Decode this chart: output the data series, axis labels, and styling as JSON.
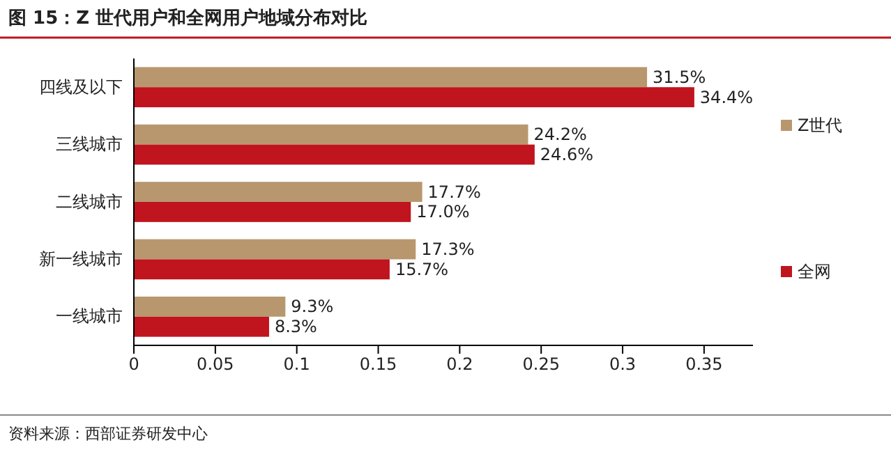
{
  "chart_data": {
    "type": "bar",
    "orientation": "horizontal",
    "title": "图 15：Z 世代用户和全网用户地域分布对比",
    "categories": [
      "四线及以下",
      "三线城市",
      "二线城市",
      "新一线城市",
      "一线城市"
    ],
    "series": [
      {
        "name": "Z世代",
        "color": "#b9976e",
        "values": [
          0.315,
          0.242,
          0.177,
          0.173,
          0.093
        ],
        "value_labels": [
          "31.5%",
          "24.2%",
          "17.7%",
          "17.3%",
          "9.3%"
        ]
      },
      {
        "name": "全网",
        "color": "#c0141e",
        "values": [
          0.344,
          0.246,
          0.17,
          0.157,
          0.083
        ],
        "value_labels": [
          "34.4%",
          "24.6%",
          "17.0%",
          "15.7%",
          "8.3%"
        ]
      }
    ],
    "xlim": [
      0,
      0.38
    ],
    "xticks": [
      0,
      0.05,
      0.1,
      0.15,
      0.2,
      0.25,
      0.3,
      0.35
    ],
    "legend": "right",
    "grid": false,
    "annotations": [
      "资料来源：西部证券研发中心"
    ]
  }
}
